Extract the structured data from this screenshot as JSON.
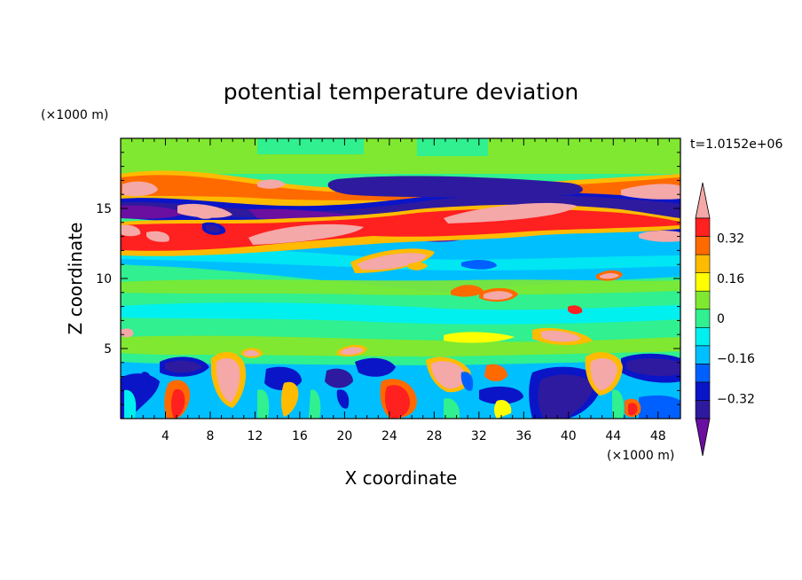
{
  "chart_data": {
    "type": "heatmap",
    "title": "potential temperature deviation",
    "xlabel": "X coordinate",
    "ylabel": "Z coordinate",
    "x_unit": "(×1000 m)",
    "y_unit": "(×1000 m)",
    "time_label": "t=1.0152e+06",
    "xlim": [
      0,
      50
    ],
    "ylim": [
      0,
      20
    ],
    "x_ticks": [
      4,
      8,
      12,
      16,
      20,
      24,
      28,
      32,
      36,
      40,
      44,
      48
    ],
    "y_ticks": [
      5,
      10,
      15
    ],
    "colorbar": {
      "labels": [
        "0.32",
        "0.16",
        "0",
        "−0.16",
        "−0.32"
      ],
      "label_values": [
        0.32,
        0.16,
        0,
        -0.16,
        -0.32
      ],
      "levels": [
        -0.48,
        -0.4,
        -0.32,
        -0.24,
        -0.16,
        -0.08,
        0,
        0.08,
        0.16,
        0.24,
        0.32,
        0.4,
        0.48
      ],
      "colors": [
        "#6a0fa0",
        "#2e1a9e",
        "#0a15c8",
        "#0060ff",
        "#00bfff",
        "#00f0f0",
        "#30f090",
        "#80e830",
        "#ffff00",
        "#ffbb00",
        "#ff6a00",
        "#ff2020",
        "#f4a8a8"
      ]
    }
  }
}
